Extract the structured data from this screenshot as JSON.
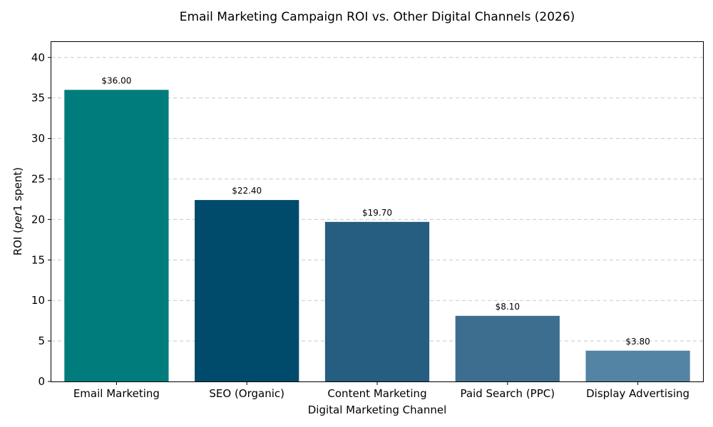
{
  "chart_data": {
    "type": "bar",
    "title": "Email Marketing Campaign ROI vs. Other Digital Channels (2026)",
    "xlabel": "Digital Marketing Channel",
    "ylabel_prefix": "ROI (",
    "ylabel_italic": "per",
    "ylabel_suffix": "1 spent)",
    "categories": [
      "Email Marketing",
      "SEO (Organic)",
      "Content Marketing",
      "Paid Search (PPC)",
      "Display Advertising"
    ],
    "values": [
      36.0,
      22.4,
      19.7,
      8.1,
      3.8
    ],
    "data_labels": [
      "$36.00",
      "$22.40",
      "$19.70",
      "$8.10",
      "$3.80"
    ],
    "colors": [
      "#007c7c",
      "#004a6b",
      "#255e80",
      "#3d6e8f",
      "#5484a4"
    ],
    "ylim": [
      0,
      42
    ],
    "yticks": [
      0,
      5,
      10,
      15,
      20,
      25,
      30,
      35,
      40
    ],
    "grid": true,
    "legend": "none"
  }
}
